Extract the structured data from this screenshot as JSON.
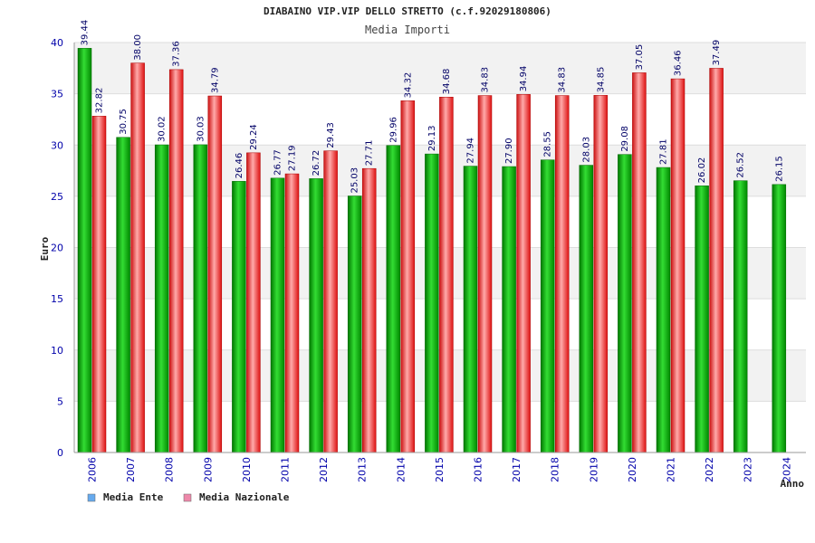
{
  "chart_data": {
    "type": "bar",
    "title": "DIABAINO VIP.VIP DELLO STRETTO (c.f.92029180806)",
    "subtitle": "Media Importi",
    "ylabel": "Euro",
    "xlabel": "Anno",
    "ylim": [
      0,
      40
    ],
    "yticks": [
      0,
      5,
      10,
      15,
      20,
      25,
      30,
      35,
      40
    ],
    "grid": true,
    "legend_position": "bottom-left",
    "categories": [
      "2006",
      "2007",
      "2008",
      "2009",
      "2010",
      "2011",
      "2012",
      "2013",
      "2014",
      "2015",
      "2016",
      "2017",
      "2018",
      "2019",
      "2020",
      "2021",
      "2022",
      "2023",
      "2024"
    ],
    "series": [
      {
        "name": "Media Ente",
        "color": "#00aa00",
        "legend_color": "#66aaee",
        "values": [
          39.44,
          30.75,
          30.02,
          30.03,
          26.46,
          26.77,
          26.72,
          25.03,
          29.96,
          29.13,
          27.94,
          27.9,
          28.55,
          28.03,
          29.08,
          27.81,
          26.02,
          26.52,
          26.15
        ],
        "labels": [
          "39.44",
          "30.75",
          "30.02",
          "30.03",
          "26.46",
          "26.77",
          "26.72",
          "25.03",
          "29.96",
          "29.13",
          "27.94",
          "27.90",
          "28.55",
          "28.03",
          "29.08",
          "27.81",
          "26.02",
          "26.52",
          "26.15"
        ]
      },
      {
        "name": "Media Nazionale",
        "color": "#ee2222",
        "legend_color": "#ee88aa",
        "values": [
          32.82,
          38.0,
          37.36,
          34.79,
          29.24,
          27.19,
          29.43,
          27.71,
          34.32,
          34.68,
          34.83,
          34.94,
          34.83,
          34.85,
          37.05,
          36.46,
          37.49,
          null,
          null
        ],
        "labels": [
          "32.82",
          "38.00",
          "37.36",
          "34.79",
          "29.24",
          "27.19",
          "29.43",
          "27.71",
          "34.32",
          "34.68",
          "34.83",
          "34.94",
          "34.83",
          "34.85",
          "37.05",
          "36.46",
          "37.49",
          null,
          null
        ]
      }
    ]
  }
}
